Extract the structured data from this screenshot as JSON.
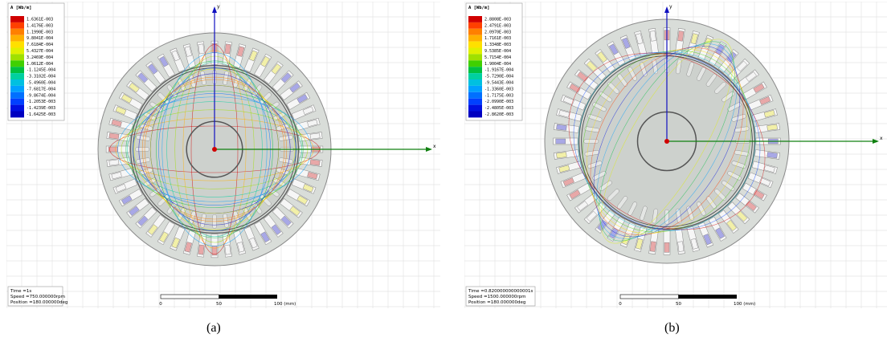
{
  "panels": [
    {
      "legend": {
        "title": "A [Wb/m]",
        "values": [
          "1.6361E-003",
          "1.4176E-003",
          "1.1990E-003",
          "9.8041E-004",
          "7.6184E-004",
          "5.4327E-004",
          "3.2469E-004",
          "1.0612E-004",
          "-1.1245E-004",
          "-3.3102E-004",
          "-5.4960E-004",
          "-7.6817E-004",
          "-9.8674E-004",
          "-1.2053E-003",
          "-1.4239E-003",
          "-1.6425E-003"
        ]
      },
      "axes": {
        "x": "x",
        "y": "y"
      },
      "info": {
        "time": "Time =1s",
        "speed": "Speed =750.000000rpm",
        "position": "Position =180.000000deg"
      },
      "scale": {
        "start": "0",
        "mid": "50",
        "end": "100 (mm)"
      },
      "caption": "(a)"
    },
    {
      "legend": {
        "title": "A [Wb/m]",
        "values": [
          "2.8808E-003",
          "2.4791E-003",
          "2.0970E-003",
          "1.7161E-003",
          "1.3348E-003",
          "9.5385E-004",
          "5.7154E-004",
          "1.9004E-004",
          "-1.9167E-004",
          "-5.7290E-004",
          "-9.5443E-004",
          "-1.3360E-003",
          "-1.7175E-003",
          "-2.0990E-003",
          "-2.4805E-003",
          "-2.8620E-003"
        ]
      },
      "axes": {
        "x": "x",
        "y": "y"
      },
      "info": {
        "time": "Time =0.820000000000001s",
        "speed": "Speed =1500.000000rpm",
        "position": "Position =180.000000deg"
      },
      "scale": {
        "start": "0",
        "mid": "50",
        "end": "100 (mm)"
      },
      "caption": "(b)"
    }
  ]
}
